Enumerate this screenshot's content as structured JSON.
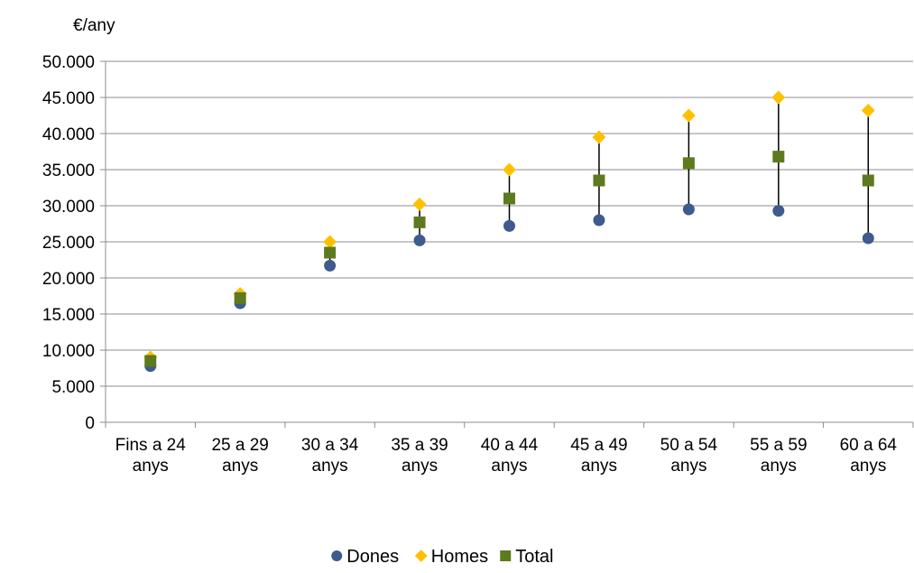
{
  "chart_data": {
    "type": "scatter",
    "ylabel": "€/any",
    "ylim": [
      0,
      50000
    ],
    "ytick_labels": [
      "0",
      "5.000",
      "10.000",
      "15.000",
      "20.000",
      "25.000",
      "30.000",
      "35.000",
      "40.000",
      "45.000",
      "50.000"
    ],
    "categories": [
      [
        "Fins a 24",
        "anys"
      ],
      [
        "25 a 29",
        "anys"
      ],
      [
        "30 a 34",
        "anys"
      ],
      [
        "35 a 39",
        "anys"
      ],
      [
        "40 a 44",
        "anys"
      ],
      [
        "45 a 49",
        "anys"
      ],
      [
        "50 a 54",
        "anys"
      ],
      [
        "55 a 59",
        "anys"
      ],
      [
        "60 a 64",
        "anys"
      ]
    ],
    "series": [
      {
        "name": "Dones",
        "marker": "circle",
        "color": "#3F5A8E",
        "values": [
          7800,
          16500,
          21700,
          25200,
          27200,
          28000,
          29500,
          29300,
          25500
        ]
      },
      {
        "name": "Homes",
        "marker": "diamond",
        "color": "#FFC000",
        "values": [
          9000,
          17800,
          25000,
          30200,
          35000,
          39500,
          42500,
          45000,
          43200
        ]
      },
      {
        "name": "Total",
        "marker": "square",
        "color": "#5E7A1E",
        "values": [
          8500,
          17200,
          23500,
          27700,
          31000,
          33500,
          35900,
          36800,
          33500
        ]
      }
    ],
    "high_low_lines": true,
    "grid": "horizontal",
    "legend": "bottom"
  }
}
